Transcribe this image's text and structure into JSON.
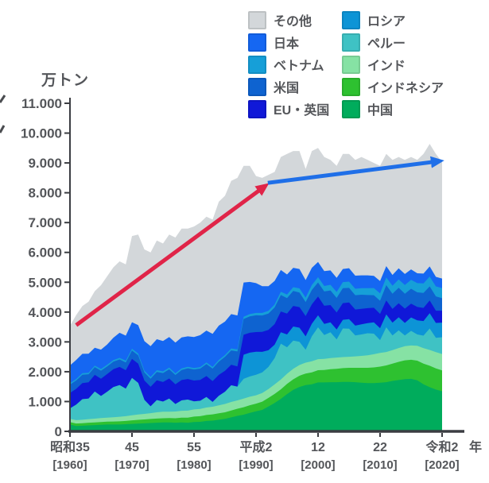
{
  "chart_data": {
    "type": "area",
    "stacked": true,
    "ylabel": "万トン",
    "x_suffix": "年",
    "x_range": [
      1960,
      2020
    ],
    "ylim": [
      0,
      11000
    ],
    "grid": false,
    "legend_position": "top-right",
    "y_ticks": [
      "0",
      "1.000",
      "2.000",
      "3.000",
      "4.000",
      "5.000",
      "6.000",
      "7.000",
      "8.000",
      "9.000",
      "10.000",
      "11.000"
    ],
    "x_ticks": [
      {
        "era": "昭和35",
        "year_label": "[1960]",
        "year": 1960
      },
      {
        "era": "45",
        "year_label": "[1970]",
        "year": 1970
      },
      {
        "era": "55",
        "year_label": "[1980]",
        "year": 1980
      },
      {
        "era": "平成2",
        "year_label": "[1990]",
        "year": 1990
      },
      {
        "era": "12",
        "year_label": "[2000]",
        "year": 2000
      },
      {
        "era": "22",
        "year_label": "[2010]",
        "year": 2010
      },
      {
        "era": "令和2",
        "year_label": "[2020]",
        "year": 2020
      }
    ],
    "series": [
      {
        "key": "china",
        "label": "中国",
        "color": "#00AC5C",
        "values": [
          230,
          180,
          190,
          200,
          210,
          220,
          230,
          230,
          230,
          240,
          250,
          260,
          270,
          280,
          290,
          300,
          300,
          290,
          300,
          290,
          315,
          320,
          350,
          360,
          390,
          420,
          470,
          520,
          560,
          620,
          670,
          720,
          830,
          950,
          1090,
          1250,
          1390,
          1490,
          1550,
          1580,
          1640,
          1640,
          1650,
          1650,
          1660,
          1660,
          1650,
          1630,
          1620,
          1620,
          1630,
          1650,
          1690,
          1720,
          1750,
          1760,
          1710,
          1580,
          1480,
          1400,
          1345
        ]
      },
      {
        "key": "indonesia",
        "label": "インドネシア",
        "color": "#2EC130",
        "values": [
          80,
          85,
          85,
          90,
          90,
          95,
          95,
          100,
          105,
          110,
          120,
          125,
          130,
          135,
          140,
          140,
          145,
          150,
          160,
          170,
          180,
          190,
          200,
          210,
          215,
          220,
          230,
          240,
          250,
          255,
          260,
          275,
          290,
          305,
          320,
          340,
          355,
          375,
          390,
          400,
          410,
          420,
          435,
          450,
          460,
          470,
          480,
          500,
          510,
          525,
          540,
          560,
          580,
          610,
          630,
          640,
          660,
          690,
          720,
          710,
          700
        ]
      },
      {
        "key": "india",
        "label": "インド",
        "color": "#86E2A4",
        "values": [
          110,
          110,
          115,
          120,
          125,
          130,
          135,
          145,
          155,
          160,
          170,
          180,
          185,
          195,
          210,
          220,
          215,
          225,
          230,
          235,
          240,
          245,
          250,
          255,
          265,
          280,
          285,
          280,
          290,
          285,
          280,
          290,
          300,
          320,
          330,
          340,
          350,
          360,
          365,
          370,
          370,
          370,
          370,
          375,
          370,
          370,
          385,
          400,
          420,
          440,
          460,
          450,
          455,
          465,
          475,
          480,
          500,
          520,
          530,
          545,
          550
        ]
      },
      {
        "key": "peru",
        "label": "ペルー",
        "color": "#3FC2C4",
        "values": [
          350,
          520,
          690,
          690,
          910,
          740,
          870,
          1010,
          1060,
          920,
          1250,
          1060,
          470,
          230,
          410,
          340,
          440,
          250,
          350,
          370,
          270,
          270,
          350,
          160,
          320,
          410,
          560,
          460,
          660,
          680,
          690,
          690,
          740,
          880,
          1200,
          890,
          950,
          780,
          430,
          840,
          1070,
          800,
          870,
          610,
          960,
          940,
          700,
          720,
          740,
          690,
          430,
          830,
          490,
          590,
          360,
          490,
          380,
          420,
          720,
          480,
          560
        ]
      },
      {
        "key": "russia",
        "label": "ロシア",
        "color": "#0D94D6",
        "values": [
          0,
          0,
          0,
          0,
          0,
          0,
          0,
          0,
          0,
          0,
          0,
          0,
          0,
          0,
          0,
          0,
          0,
          0,
          0,
          0,
          0,
          0,
          0,
          0,
          0,
          0,
          0,
          0,
          810,
          800,
          770,
          690,
          560,
          450,
          380,
          430,
          470,
          470,
          450,
          420,
          400,
          370,
          330,
          330,
          290,
          320,
          330,
          340,
          340,
          380,
          400,
          430,
          430,
          440,
          420,
          450,
          470,
          490,
          510,
          500,
          490
        ]
      },
      {
        "key": "eu_uk",
        "label": "EU・英国",
        "color": "#1018D8",
        "values": [
          520,
          530,
          540,
          545,
          560,
          580,
          590,
          600,
          610,
          620,
          640,
          645,
          650,
          655,
          660,
          655,
          670,
          665,
          680,
          690,
          700,
          700,
          705,
          700,
          705,
          700,
          690,
          680,
          670,
          665,
          660,
          670,
          680,
          690,
          700,
          700,
          690,
          690,
          680,
          650,
          630,
          610,
          580,
          570,
          560,
          560,
          540,
          520,
          500,
          490,
          480,
          470,
          460,
          470,
          480,
          460,
          450,
          440,
          430,
          410,
          400
        ]
      },
      {
        "key": "usa",
        "label": "米国",
        "color": "#0E63D0",
        "values": [
          280,
          280,
          280,
          270,
          260,
          270,
          260,
          250,
          250,
          260,
          280,
          280,
          270,
          270,
          280,
          300,
          310,
          310,
          340,
          360,
          370,
          380,
          400,
          420,
          440,
          470,
          480,
          500,
          530,
          550,
          560,
          550,
          550,
          560,
          550,
          520,
          500,
          490,
          470,
          480,
          470,
          480,
          490,
          490,
          500,
          490,
          480,
          470,
          440,
          420,
          440,
          510,
          510,
          520,
          500,
          500,
          490,
          500,
          470,
          480,
          420
        ]
      },
      {
        "key": "vietnam",
        "label": "ベトナム",
        "color": "#169FD8",
        "values": [
          50,
          50,
          50,
          50,
          50,
          55,
          55,
          55,
          55,
          60,
          60,
          60,
          60,
          60,
          60,
          55,
          55,
          55,
          50,
          50,
          50,
          50,
          55,
          55,
          60,
          60,
          65,
          65,
          70,
          75,
          80,
          85,
          90,
          100,
          110,
          120,
          130,
          140,
          150,
          165,
          180,
          185,
          190,
          200,
          205,
          210,
          215,
          220,
          230,
          240,
          250,
          260,
          270,
          280,
          290,
          300,
          310,
          320,
          330,
          335,
          340
        ]
      },
      {
        "key": "japan",
        "label": "日本",
        "color": "#1567F2",
        "values": [
          590,
          640,
          650,
          640,
          600,
          650,
          680,
          750,
          840,
          840,
          890,
          950,
          990,
          1030,
          1040,
          1020,
          1030,
          1030,
          1040,
          1020,
          1040,
          1070,
          1070,
          1110,
          1150,
          1120,
          1150,
          1140,
          1150,
          1080,
          1000,
          900,
          830,
          790,
          730,
          670,
          650,
          650,
          590,
          580,
          510,
          500,
          480,
          470,
          440,
          450,
          440,
          430,
          430,
          410,
          410,
          380,
          360,
          370,
          370,
          350,
          330,
          330,
          340,
          320,
          320
        ]
      },
      {
        "key": "others",
        "label": "その他",
        "color": "#D3D7DA",
        "values": [
          1330,
          1505,
          1600,
          1745,
          1895,
          2160,
          2285,
          2360,
          2395,
          2390,
          2890,
          3040,
          3075,
          3145,
          3310,
          3270,
          3435,
          3525,
          3650,
          3615,
          3705,
          3775,
          3820,
          3830,
          4155,
          4220,
          4470,
          4615,
          3910,
          3890,
          3590,
          3630,
          3730,
          3655,
          3790,
          4040,
          3915,
          3955,
          3725,
          3915,
          3820,
          3825,
          3705,
          3755,
          3855,
          3830,
          3880,
          3970,
          3870,
          3785,
          3860,
          3760,
          3855,
          3735,
          3825,
          3770,
          3800,
          4010,
          4110,
          4120,
          3905
        ]
      }
    ],
    "total": [
      3540,
      3900,
      4200,
      4350,
      4700,
      4900,
      5200,
      5500,
      5700,
      5600,
      6550,
      6600,
      6100,
      6000,
      6400,
      6300,
      6600,
      6500,
      6800,
      6800,
      6870,
      7000,
      7200,
      7100,
      7700,
      7900,
      8400,
      8500,
      8900,
      8900,
      8560,
      8500,
      8600,
      8700,
      9200,
      9300,
      9400,
      9400,
      8800,
      9400,
      9500,
      9200,
      9100,
      8900,
      9300,
      9300,
      9100,
      9200,
      9100,
      9000,
      8900,
      9300,
      9100,
      9200,
      9100,
      9200,
      9100,
      9300,
      9640,
      9300,
      9030
    ],
    "annotations": [
      {
        "type": "arrow",
        "name": "rising-trend-arrow",
        "color": "#E02448",
        "from_year": 1961,
        "from_value": 3560,
        "to_year": 1991.5,
        "to_value": 8230
      },
      {
        "type": "arrow",
        "name": "plateau-trend-arrow",
        "color": "#1F6FE8",
        "from_year": 1991.9,
        "from_value": 8330,
        "to_year": 2019.6,
        "to_value": 9060
      }
    ]
  },
  "legend": {
    "columns": [
      [
        "others",
        "japan",
        "vietnam",
        "usa",
        "eu_uk"
      ],
      [
        "russia",
        "peru",
        "india",
        "indonesia",
        "china"
      ]
    ]
  }
}
